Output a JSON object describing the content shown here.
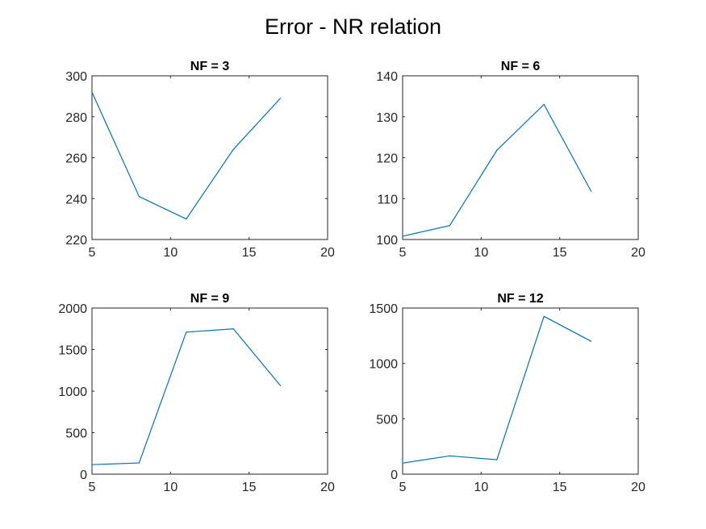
{
  "figure": {
    "title": "Error - NR relation"
  },
  "colors": {
    "line": "#0072BD",
    "axis": "#262626",
    "title": "#000000"
  },
  "chart_data": [
    {
      "type": "line",
      "title": "NF = 3",
      "xlim": [
        5,
        20
      ],
      "ylim": [
        220,
        300
      ],
      "xticks": [
        5,
        10,
        15,
        20
      ],
      "yticks": [
        220,
        240,
        260,
        280,
        300
      ],
      "x": [
        5,
        8,
        11,
        14,
        17
      ],
      "y": [
        292,
        241,
        230,
        264,
        289
      ],
      "grid": false
    },
    {
      "type": "line",
      "title": "NF = 6",
      "xlim": [
        5,
        20
      ],
      "ylim": [
        100,
        140
      ],
      "xticks": [
        5,
        10,
        15,
        20
      ],
      "yticks": [
        100,
        110,
        120,
        130,
        140
      ],
      "x": [
        5,
        8,
        11,
        14,
        17
      ],
      "y": [
        100.8,
        103.4,
        121.8,
        133,
        111.8
      ],
      "grid": false
    },
    {
      "type": "line",
      "title": "NF = 9",
      "xlim": [
        5,
        20
      ],
      "ylim": [
        0,
        2000
      ],
      "xticks": [
        5,
        10,
        15,
        20
      ],
      "yticks": [
        0,
        500,
        1000,
        1500,
        2000
      ],
      "x": [
        5,
        8,
        11,
        14,
        17
      ],
      "y": [
        115,
        135,
        1710,
        1750,
        1065
      ],
      "grid": false
    },
    {
      "type": "line",
      "title": "NF = 12",
      "xlim": [
        5,
        20
      ],
      "ylim": [
        0,
        1500
      ],
      "xticks": [
        5,
        10,
        15,
        20
      ],
      "yticks": [
        0,
        500,
        1000,
        1500
      ],
      "x": [
        5,
        8,
        11,
        14,
        17
      ],
      "y": [
        100,
        165,
        130,
        1425,
        1200
      ],
      "grid": false
    }
  ]
}
